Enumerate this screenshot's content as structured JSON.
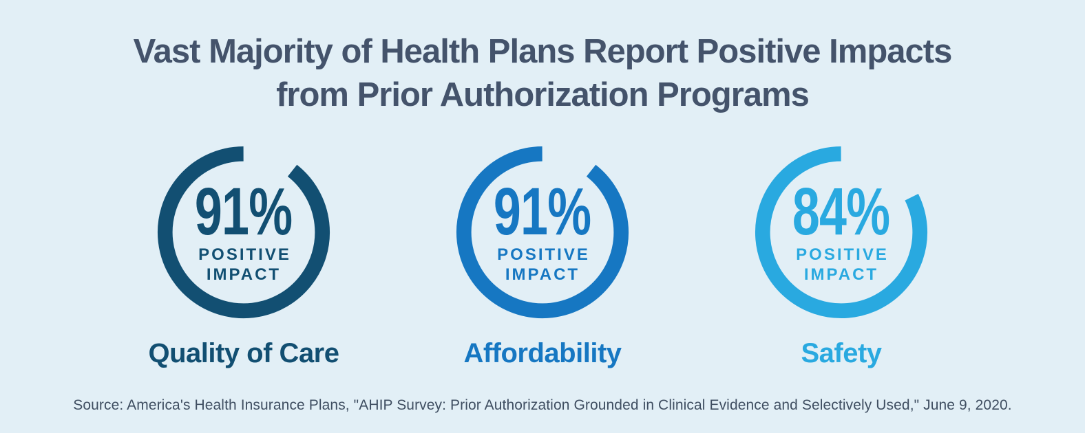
{
  "title": {
    "line1": "Vast Majority of Health Plans Report Positive Impacts",
    "line2": "from Prior Authorization Programs"
  },
  "ring_caption": {
    "line1": "POSITIVE",
    "line2": "IMPACT"
  },
  "source": "Source: America's Health Insurance Plans, \"AHIP Survey: Prior Authorization Grounded in Clinical Evidence and Selectively Used,\" June 9, 2020.",
  "colors": {
    "background": "#E2EFF6",
    "title_text": "#44536B",
    "source_text": "#3F4E61",
    "donut_dark_blue": "#124F72",
    "donut_medium_blue": "#1677C2",
    "donut_light_blue": "#29A9E0"
  },
  "chart_data": {
    "type": "pie",
    "variant": "donut-rings",
    "title": "Vast Majority of Health Plans Report Positive Impacts from Prior Authorization Programs",
    "unit": "%",
    "categories": [
      "Quality of Care",
      "Affordability",
      "Safety"
    ],
    "values": [
      91,
      91,
      84
    ],
    "legend_position": "none",
    "donuts": [
      {
        "category": "Quality of Care",
        "value": 91,
        "display": "91%",
        "caption": "POSITIVE IMPACT",
        "color": "#124F72"
      },
      {
        "category": "Affordability",
        "value": 91,
        "display": "91%",
        "caption": "POSITIVE IMPACT",
        "color": "#1677C2"
      },
      {
        "category": "Safety",
        "value": 84,
        "display": "84%",
        "caption": "POSITIVE IMPACT",
        "color": "#29A9E0"
      }
    ]
  }
}
